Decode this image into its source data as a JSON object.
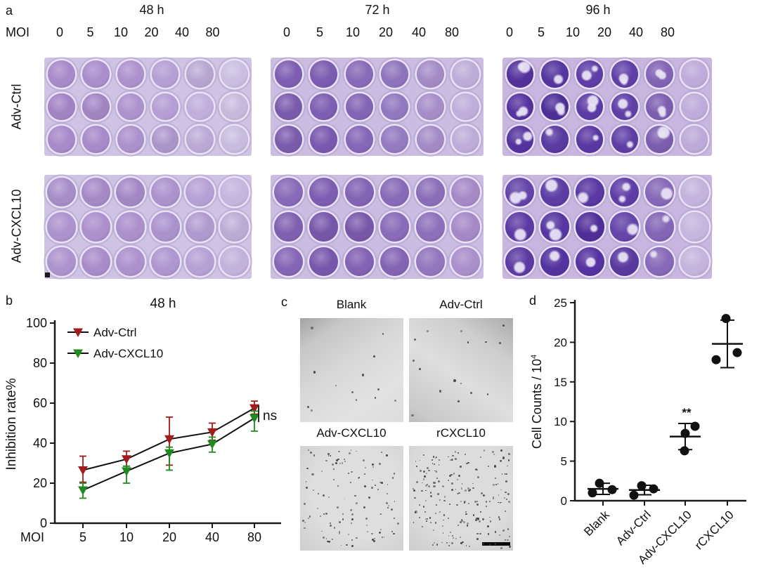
{
  "colors": {
    "adv_ctrl_series": "#a31c1c",
    "adv_cxcl10_series": "#1f8a1f",
    "axis": "#1a1a1a",
    "plate_bg_48h": "#cfc3e4",
    "plate_bg_72h": "#cbbce2",
    "plate_bg_96h": "#c8b6e0",
    "well_rim": "#e8e2f4",
    "micrograph_dot": "#3f3f3f",
    "scatter_point": "#111111"
  },
  "panel_a": {
    "label": "a",
    "moi_axis_label": "MOI",
    "moi_values": [
      "0",
      "5",
      "10",
      "20",
      "40",
      "80"
    ],
    "row_labels": [
      "Adv-Ctrl",
      "Adv-CXCL10"
    ],
    "timepoints": [
      {
        "label": "48 h",
        "plates": [
          {
            "row": "Adv-Ctrl",
            "bg": "#cfc3e4",
            "patchy": false,
            "cols": [
              "#a486c8",
              "#a68ac9",
              "#aa90cc",
              "#b29cd2",
              "#bfaeda",
              "#cbbfe2"
            ]
          },
          {
            "row": "Adv-CXCL10",
            "bg": "#cfc3e4",
            "patchy": false,
            "cols": [
              "#ab92cd",
              "#a88cca",
              "#a98eca",
              "#ad94ce",
              "#b5a0d4",
              "#c2b2dc"
            ]
          }
        ]
      },
      {
        "label": "72 h",
        "plates": [
          {
            "row": "Adv-Ctrl",
            "bg": "#cbbce2",
            "patchy": false,
            "cols": [
              "#7e5fb3",
              "#7757ae",
              "#8365b5",
              "#9076bf",
              "#a78fca",
              "#c0afdb"
            ]
          },
          {
            "row": "Adv-CXCL10",
            "bg": "#cbbce2",
            "patchy": false,
            "cols": [
              "#8263b4",
              "#7b5ab0",
              "#7d5db1",
              "#8466b6",
              "#8c70bb",
              "#a68ac8"
            ]
          }
        ]
      },
      {
        "label": "96 h",
        "plates": [
          {
            "row": "Adv-Ctrl",
            "bg": "#c8b6e0",
            "patchy": true,
            "cols": [
              "#5533a0",
              "#50309c",
              "#5a39a4",
              "#6242ab",
              "#7d5fb2",
              "#bba8d8"
            ]
          },
          {
            "row": "Adv-CXCL10",
            "bg": "#c8b6e0",
            "patchy": true,
            "cols": [
              "#5c3ba5",
              "#5434a0",
              "#52309e",
              "#5c3ba5",
              "#8062b4",
              "#c3b3dd"
            ]
          }
        ]
      }
    ]
  },
  "panel_c": {
    "label": "c",
    "images": [
      {
        "title": "Blank",
        "dot_count": 13,
        "dense": false,
        "scalebar": false
      },
      {
        "title": "Adv-Ctrl",
        "dot_count": 16,
        "dense": false,
        "scalebar": false
      },
      {
        "title": "Adv-CXCL10",
        "dot_count": 120,
        "dense": true,
        "scalebar": false
      },
      {
        "title": "rCXCL10",
        "dot_count": 210,
        "dense": true,
        "scalebar": true
      }
    ]
  },
  "chart_data": [
    {
      "id": "panel-b",
      "panel_label": "b",
      "type": "line",
      "title": "48 h",
      "xlabel": "MOI",
      "ylabel": "Inhibition rate%",
      "x_categories": [
        "5",
        "10",
        "20",
        "40",
        "80"
      ],
      "y_ticks": [
        "100",
        "80",
        "60",
        "40",
        "20",
        "0"
      ],
      "ylim": [
        0,
        100
      ],
      "grid": false,
      "legend_position": "top-left-inside",
      "annotation": "ns",
      "series": [
        {
          "name": "Adv-Ctrl",
          "color": "#a31c1c",
          "marker": "triangle-down",
          "values": [
            26.5,
            32,
            42,
            45.5,
            57.5
          ],
          "err_up": [
            7,
            4,
            11,
            4.5,
            3.5
          ],
          "err_down": [
            6,
            3.5,
            13,
            4,
            3
          ]
        },
        {
          "name": "Adv-CXCL10",
          "color": "#1f8a1f",
          "marker": "triangle-down",
          "values": [
            16.5,
            26,
            35,
            39.5,
            52.5
          ],
          "err_up": [
            3.5,
            2.5,
            3,
            3.5,
            3.5
          ],
          "err_down": [
            4,
            6,
            8.5,
            4,
            6.5
          ]
        }
      ]
    },
    {
      "id": "panel-d",
      "panel_label": "d",
      "type": "scatter",
      "ylabel_base": "Cell Counts / 10",
      "ylabel_exp": "4",
      "categories": [
        "Blank",
        "Adv-Ctrl",
        "Adv-CXCL10",
        "rCXCL10"
      ],
      "y_ticks": [
        "25",
        "20",
        "15",
        "10",
        "5",
        "0"
      ],
      "ylim": [
        0,
        25
      ],
      "grid": false,
      "groups": [
        {
          "name": "Blank",
          "points": [
            2.2,
            1.0,
            1.4
          ],
          "mean": 1.5,
          "sd": 0.7,
          "sig": ""
        },
        {
          "name": "Adv-Ctrl",
          "points": [
            1.9,
            0.7,
            1.5
          ],
          "mean": 1.35,
          "sd": 0.6,
          "sig": ""
        },
        {
          "name": "Adv-CXCL10",
          "points": [
            8.5,
            9.4,
            6.3
          ],
          "mean": 8.1,
          "sd": 1.65,
          "sig": "**"
        },
        {
          "name": "rCXCL10",
          "points": [
            23.0,
            17.8,
            18.7
          ],
          "mean": 19.8,
          "sd": 3.0,
          "sig": ""
        }
      ]
    }
  ]
}
